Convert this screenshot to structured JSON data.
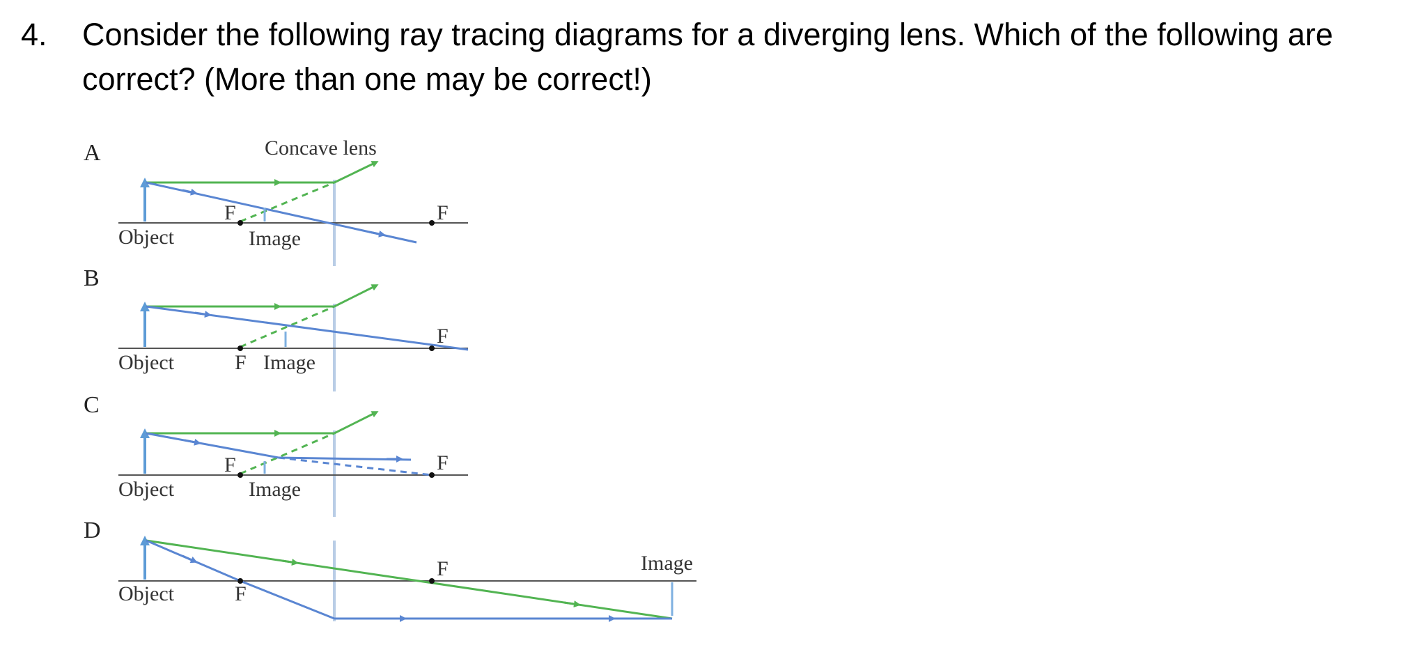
{
  "question": {
    "number": "4.",
    "text": "Consider the following ray tracing diagrams for a diverging lens.  Which of the following are correct?  (More than one may be correct!)"
  },
  "diagram": {
    "lens_caption": "Concave lens",
    "panels": [
      {
        "letter": "A",
        "object_label": "Object",
        "image_label": "Image",
        "focal_near_label": "F",
        "focal_far_label": "F"
      },
      {
        "letter": "B",
        "object_label": "Object",
        "image_label": "Image",
        "focal_near_label": "F",
        "focal_far_label": "F"
      },
      {
        "letter": "C",
        "object_label": "Object",
        "image_label": "Image",
        "focal_near_label": "F",
        "focal_far_label": "F"
      },
      {
        "letter": "D",
        "object_label": "Object",
        "image_label": "Image",
        "focal_near_label": "F",
        "focal_far_label": "F"
      }
    ],
    "colors": {
      "parallel_ray": "#52b452",
      "center_ray": "#5a86d2",
      "lens": "#b9cde6",
      "axis": "#555555"
    }
  }
}
